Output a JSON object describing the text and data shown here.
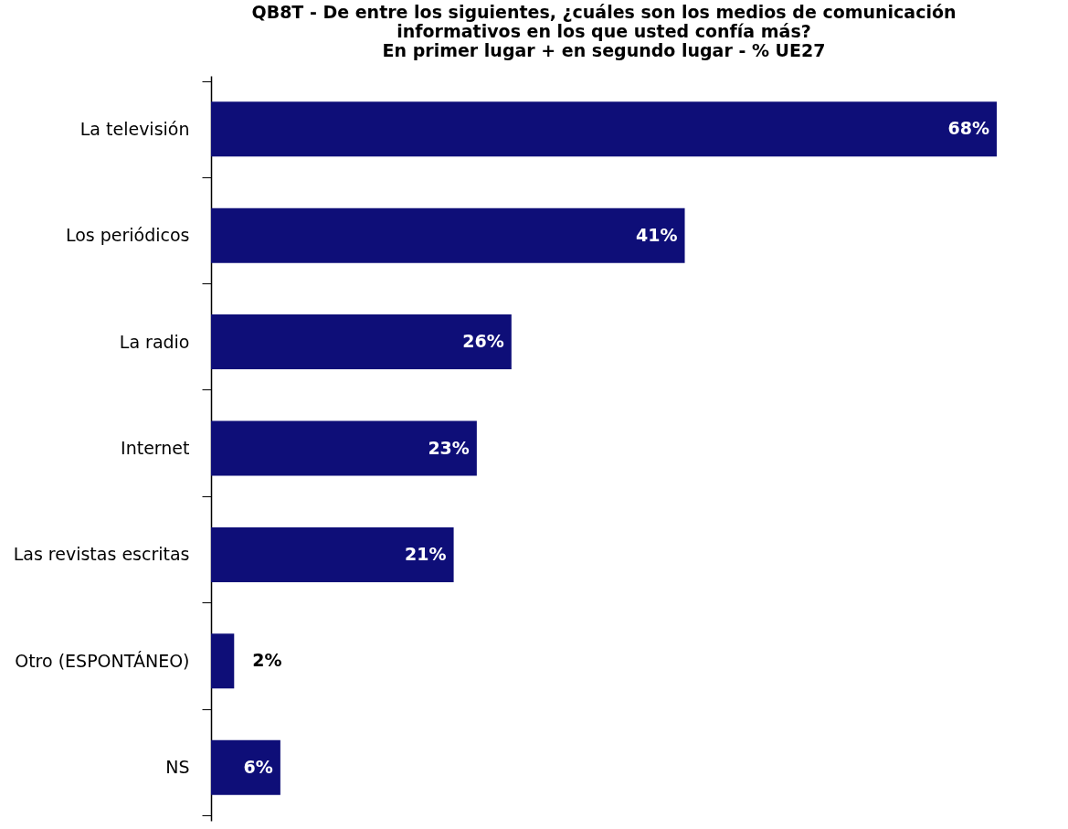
{
  "chart_data": {
    "type": "bar",
    "orientation": "horizontal",
    "title": "QB8T - De entre los siguientes, ¿cuáles son los medios de comunicación\ninformativos en los que usted confía más?\nEn primer lugar + en segundo lugar - % UE27",
    "categories": [
      "La televisión",
      "Los periódicos",
      "La radio",
      "Internet",
      "Las revistas escritas",
      "Otro (ESPONTÁNEO)",
      "NS"
    ],
    "values": [
      68,
      41,
      26,
      23,
      21,
      2,
      6
    ],
    "value_labels": [
      "68%",
      "41%",
      "26%",
      "23%",
      "21%",
      "2%",
      "6%"
    ],
    "color": "#0e0e78"
  }
}
